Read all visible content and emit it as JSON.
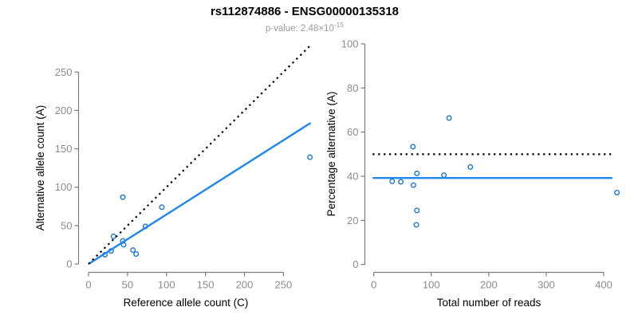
{
  "header": {
    "title": "rs112874886 - ENSG00000135318",
    "subtitle_prefix": "p-value: 2.48×10",
    "subtitle_exponent": "-15"
  },
  "colors": {
    "trend_line_blue": "#1e87f0",
    "point_stroke_blue": "#1b78cf",
    "dashed_line_black": "#000000",
    "axis_gray": "#7d7d7d",
    "tick_label_gray": "#8c8c8c",
    "title_black": "#000000",
    "subtitle_gray": "#9a9a9a",
    "background": "#ffffff"
  },
  "chart_data": [
    {
      "type": "scatter",
      "panel": "left",
      "xlabel": "Reference allele count (C)",
      "ylabel": "Alternative allele count (A)",
      "xticks": [
        0,
        50,
        100,
        150,
        200,
        250
      ],
      "yticks": [
        0,
        50,
        100,
        150,
        200,
        250
      ],
      "xlim": [
        0,
        290
      ],
      "ylim": [
        0,
        285
      ],
      "grid": false,
      "legend": "none",
      "points": [
        [
          21,
          12
        ],
        [
          29,
          17
        ],
        [
          32,
          36
        ],
        [
          44,
          30
        ],
        [
          45,
          25
        ],
        [
          44,
          87
        ],
        [
          57,
          18
        ],
        [
          61,
          13
        ],
        [
          73,
          49
        ],
        [
          94,
          74
        ],
        [
          284,
          139
        ]
      ],
      "lines": [
        {
          "name": "identity-line",
          "style": "dashed",
          "color": "black",
          "x1": 0,
          "y1": 0,
          "x2": 285,
          "y2": 285
        },
        {
          "name": "regression-line",
          "style": "solid",
          "color": "blue",
          "x1": 0,
          "y1": 0,
          "x2": 285,
          "y2": 183.7
        }
      ]
    },
    {
      "type": "scatter",
      "panel": "right",
      "xlabel": "Total number of reads",
      "ylabel": "Percentage alternative (A)",
      "xticks": [
        0,
        100,
        200,
        300,
        400
      ],
      "yticks": [
        0,
        20,
        40,
        60,
        80,
        100
      ],
      "xlim": [
        0,
        430
      ],
      "ylim": [
        0,
        100
      ],
      "grid": false,
      "legend": "none",
      "points": [
        [
          32,
          37.7
        ],
        [
          47,
          37.5
        ],
        [
          68,
          53.4
        ],
        [
          75,
          41.3
        ],
        [
          69,
          36
        ],
        [
          131,
          66.4
        ],
        [
          75,
          24.5
        ],
        [
          74,
          18
        ],
        [
          122,
          40.5
        ],
        [
          168,
          44.2
        ],
        [
          423,
          32.6
        ]
      ],
      "lines": [
        {
          "name": "expected-50pct-line",
          "style": "dashed",
          "color": "black",
          "x1": -2,
          "y1": 50,
          "x2": 415,
          "y2": 50
        },
        {
          "name": "mean-percentage-line",
          "style": "solid",
          "color": "blue",
          "x1": -2,
          "y1": 39.2,
          "x2": 415,
          "y2": 39.2
        }
      ]
    }
  ]
}
